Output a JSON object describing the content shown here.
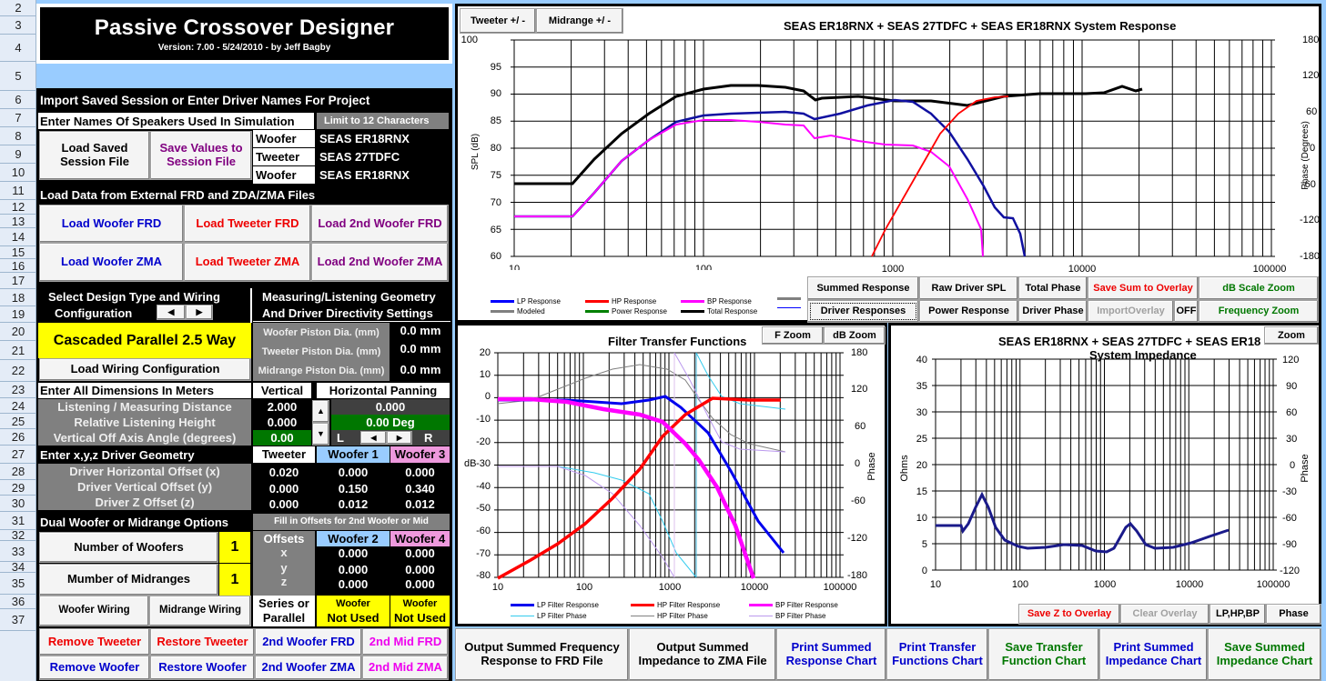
{
  "row_headers": [
    "2",
    "3",
    "4",
    "5",
    "6",
    "7",
    "8",
    "9",
    "10",
    "11",
    "12",
    "13",
    "14",
    "15",
    "16",
    "17",
    "18",
    "19",
    "20",
    "21",
    "22",
    "23",
    "24",
    "25",
    "26",
    "27",
    "28",
    "29",
    "30",
    "31",
    "32",
    "33",
    "34",
    "35",
    "36",
    "37"
  ],
  "header": {
    "title": "Passive Crossover Designer",
    "version": "Version: 7.00  -  5/24/2010 -  by Jeff Bagby"
  },
  "session": {
    "heading": "Import Saved Session or Enter Driver Names For Project",
    "names_label": "Enter Names Of Speakers Used In Simulation",
    "limit_note": "Limit to 12 Characters",
    "load_button": "Load Saved Session File",
    "save_button": "Save Values to Session File",
    "drivers": [
      {
        "role": "Woofer",
        "name": "SEAS ER18RNX"
      },
      {
        "role": "Tweeter",
        "name": "SEAS 27TDFC"
      },
      {
        "role": "Woofer",
        "name": "SEAS ER18RNX"
      }
    ]
  },
  "load_files": {
    "heading": "Load Data from External FRD and ZDA/ZMA Files",
    "buttons": [
      "Load Woofer FRD",
      "Load Tweeter FRD",
      "Load 2nd Woofer FRD",
      "Load Woofer ZMA",
      "Load Tweeter ZMA",
      "Load 2nd Woofer ZMA"
    ]
  },
  "design": {
    "heading_line1": "Select Design Type and Wiring",
    "heading_line2": "Configuration",
    "selected_type": "Cascaded Parallel 2.5 Way",
    "load_wiring": "Load Wiring Configuration",
    "prev_icon": "◀",
    "next_icon": "▶"
  },
  "geometry": {
    "heading_line1": "Measuring/Listening Geometry",
    "heading_line2": "And Driver Directivity Settings",
    "pistons": [
      {
        "label": "Woofer Piston Dia. (mm)",
        "value": "0.0 mm"
      },
      {
        "label": "Tweeter Piston Dia. (mm)",
        "value": "0.0 mm"
      },
      {
        "label": "Midrange Piston Dia. (mm)",
        "value": "0.0 mm"
      }
    ]
  },
  "dimensions": {
    "heading": "Enter All Dimensions In Meters",
    "vertical_label": "Vertical",
    "horizontal_label": "Horizontal Panning",
    "rows": [
      {
        "label": "Listening / Measuring  Distance",
        "value": "2.000"
      },
      {
        "label": "Relative Listening Height",
        "value": "0.000"
      },
      {
        "label": "Vertical Off Axis Angle (degrees)",
        "value": "0.00"
      }
    ],
    "horizontal_value": "0.000",
    "horizontal_deg": "0.00 Deg",
    "left_label": "L",
    "right_label": "R"
  },
  "driver_geometry": {
    "heading": "Enter x,y,z Driver Geometry",
    "columns": [
      "Tweeter",
      "Woofer 1",
      "Woofer 3"
    ],
    "rows": [
      {
        "label": "Driver Horizontal Offset (x)",
        "values": [
          "0.020",
          "0.000",
          "0.000"
        ]
      },
      {
        "label": "Driver Vertical Offset (y)",
        "values": [
          "0.000",
          "0.150",
          "0.340"
        ]
      },
      {
        "label": "Driver Z Offset (z)",
        "values": [
          "0.000",
          "0.012",
          "0.012"
        ]
      }
    ]
  },
  "dual": {
    "heading": "Dual Woofer or Midrange Options",
    "fill_note": "Fill in Offsets for 2nd Woofer or Mid",
    "num_woofers_label": "Number of Woofers",
    "num_woofers": "1",
    "num_mids_label": "Mumber of Midranges",
    "num_mids": "1",
    "offsets_label": "Offsets",
    "columns": [
      "Woofer 2",
      "Woofer 4"
    ],
    "rows": [
      {
        "axis": "x",
        "values": [
          "0.000",
          "0.000"
        ]
      },
      {
        "axis": "y",
        "values": [
          "0.000",
          "0.000"
        ]
      },
      {
        "axis": "z",
        "values": [
          "0.000",
          "0.000"
        ]
      }
    ],
    "woofer_wiring": "Woofer Wiring",
    "mid_wiring": "Midrange Wiring",
    "series_label_1": "Series or",
    "series_label_2": "Parallel",
    "status": [
      {
        "l1": "Woofer",
        "l2": "Not Used"
      },
      {
        "l1": "Woofer",
        "l2": "Not Used"
      }
    ]
  },
  "bottom_buttons": {
    "remove_tweeter": "Remove Tweeter",
    "restore_tweeter": "Restore Tweeter",
    "woofer2_frd": "2nd Woofer FRD",
    "mid2_frd": "2nd Mid FRD",
    "remove_woofer": "Remove Woofer",
    "restore_woofer": "Restore Woofer",
    "woofer2_zma": "2nd Woofer ZMA",
    "mid2_zma": "2nd Mid ZMA"
  },
  "system_chart": {
    "tweeter_btn": "Tweeter +/ -",
    "mid_btn": "Midrange  +/ -",
    "title": "SEAS ER18RNX  + SEAS 27TDFC + SEAS ER18RNX   System Response",
    "ylabel": "SPL  (dB)",
    "y2label": "Phase (Degrees)",
    "legend": [
      {
        "label": "LP Response",
        "color": "#0000ff"
      },
      {
        "label": "HP Response",
        "color": "#ff0000"
      },
      {
        "label": "BP Response",
        "color": "#ff00ff"
      },
      {
        "label": "Modeled",
        "color": "#808080"
      },
      {
        "label": "Power Response",
        "color": "#008000"
      },
      {
        "label": "Total Response",
        "color": "#000000"
      }
    ],
    "buttons": {
      "summed": "Summed Response",
      "raw": "Raw Driver SPL",
      "total_phase": "Total Phase",
      "save_sum": "Save Sum to Overlay",
      "db_zoom": "dB Scale Zoom",
      "driver_resp": "Driver Responses",
      "power": "Power Response",
      "driver_phase": "Driver Phase",
      "import_overlay": "ImportOverlay",
      "off": "OFF",
      "freq_zoom": "Frequency Zoom"
    }
  },
  "filter_chart": {
    "title": "Filter Transfer Functions",
    "fzoom": "F Zoom",
    "dbzoom": "dB Zoom",
    "ylabel": "dB",
    "y2label": "Phase",
    "legend": [
      {
        "label": "LP Filter Response",
        "color": "#0000ff"
      },
      {
        "label": "HP Filter Response",
        "color": "#ff0000"
      },
      {
        "label": "BP Filter Response",
        "color": "#ff00ff"
      },
      {
        "label": "LP Filter Phase",
        "color": "#33ccee"
      },
      {
        "label": "HP Filter Phase",
        "color": "#808080"
      },
      {
        "label": "BP Filter Phase",
        "color": "#bb99ee"
      }
    ]
  },
  "impedance_chart": {
    "title_line1": "SEAS ER18RNX  + SEAS 27TDFC  + SEAS ER18",
    "title_line2": "System Impedance",
    "zoom": "Zoom",
    "ylabel": "Ohms",
    "y2label": "Phase",
    "save_z": "Save Z to Overlay",
    "clear": "Clear Overlay",
    "lphpbp": "LP,HP,BP",
    "phase": "Phase"
  },
  "output_buttons": [
    {
      "label": "Output Summed Frequency Response to FRD File",
      "color": "black"
    },
    {
      "label": "Output  Summed Impedance to ZMA File",
      "color": "black"
    },
    {
      "label": "Print Summed Response Chart",
      "color": "blue"
    },
    {
      "label": "Print Transfer Functions Chart",
      "color": "blue"
    },
    {
      "label": "Save Transfer Function Chart",
      "color": "green"
    },
    {
      "label": "Print Summed Impedance Chart",
      "color": "blue"
    },
    {
      "label": "Save Summed Impedance Chart",
      "color": "green"
    }
  ],
  "chart_data": [
    {
      "type": "line",
      "title": "SEAS ER18RNX  + SEAS 27TDFC + SEAS ER18RNX   System Response",
      "xlabel": "",
      "ylabel": "SPL  (dB)",
      "y2label": "Phase (Degrees)",
      "xscale": "log",
      "xlim": [
        10,
        100000
      ],
      "ylim": [
        60,
        100
      ],
      "y2lim": [
        -180,
        180
      ],
      "x_ticks": [
        "10",
        "100",
        "1000",
        "10000",
        "100000"
      ],
      "y_ticks": [
        60,
        65,
        70,
        75,
        80,
        85,
        90,
        95,
        100
      ],
      "y2_ticks": [
        -180,
        -120,
        -60,
        0,
        60,
        120,
        180
      ],
      "grid": true,
      "series": [
        {
          "name": "Total Response",
          "x": [
            10,
            20,
            30,
            50,
            80,
            130,
            200,
            300,
            350,
            500,
            800,
            1000,
            2000,
            3000,
            5000,
            8000,
            10000,
            15000,
            20000
          ],
          "values": [
            73.3,
            73.3,
            78,
            84,
            89,
            91.5,
            91,
            90.5,
            89,
            90,
            89.7,
            89.5,
            88.5,
            90,
            90.5,
            89.8,
            90,
            91.5,
            90.7
          ]
        },
        {
          "name": "LP Response",
          "x": [
            10,
            20,
            30,
            50,
            80,
            130,
            200,
            300,
            350,
            500,
            800,
            1000,
            1500,
            2000,
            3000,
            4000,
            5000
          ],
          "values": [
            67.3,
            67.3,
            72,
            78,
            83,
            85.8,
            86.2,
            86.5,
            85.5,
            86.5,
            88.5,
            89,
            88,
            84,
            76,
            68,
            60
          ]
        },
        {
          "name": "BP Response",
          "x": [
            10,
            20,
            30,
            50,
            80,
            130,
            200,
            300,
            350,
            500,
            700,
            1000,
            1500,
            2000,
            3000
          ],
          "values": [
            67.3,
            67.3,
            72,
            78,
            83,
            85.3,
            85,
            84.8,
            82.8,
            82.5,
            82,
            81,
            78,
            70,
            60
          ]
        },
        {
          "name": "HP Response",
          "x": [
            800,
            1000,
            1500,
            2000,
            2500,
            3000,
            4000,
            5000
          ],
          "values": [
            60,
            68,
            77,
            84,
            88,
            89.5,
            90,
            90.5
          ]
        }
      ]
    },
    {
      "type": "line",
      "title": "Filter Transfer Functions",
      "ylabel": "dB",
      "y2label": "Phase",
      "xscale": "log",
      "xlim": [
        10,
        100000
      ],
      "ylim": [
        -80,
        20
      ],
      "y2lim": [
        -180,
        180
      ],
      "x_ticks": [
        "10",
        "100",
        "1000",
        "10000",
        "100000"
      ],
      "y_ticks": [
        -80,
        -70,
        -60,
        -50,
        -40,
        -30,
        -20,
        -10,
        0,
        10,
        20
      ],
      "y2_ticks": [
        -180,
        -120,
        -60,
        0,
        60,
        120,
        180
      ],
      "series": [
        {
          "name": "LP Filter Response",
          "x": [
            10,
            100,
            300,
            700,
            1000,
            2000,
            4000,
            10000,
            20000
          ],
          "values": [
            -1,
            -1,
            -1.5,
            1.5,
            0,
            -12,
            -35,
            -58,
            -70
          ]
        },
        {
          "name": "HP Filter Response",
          "x": [
            10,
            30,
            100,
            300,
            700,
            1000,
            2000,
            4000,
            10000,
            20000
          ],
          "values": [
            -80,
            -70,
            -55,
            -38,
            -20,
            -14,
            -6,
            0,
            -0.5,
            -0.5
          ]
        },
        {
          "name": "BP Filter Response",
          "x": [
            10,
            100,
            300,
            700,
            1000,
            2000,
            4000,
            8000,
            14000
          ],
          "values": [
            -1,
            -1,
            -4,
            -6,
            -12,
            -20,
            -40,
            -65,
            -80
          ]
        }
      ]
    },
    {
      "type": "line",
      "title": "SEAS ER18RNX  + SEAS 27TDFC  + SEAS ER18 System Impedance",
      "ylabel": "Ohms",
      "y2label": "Phase",
      "xscale": "log",
      "xlim": [
        10,
        100000
      ],
      "ylim": [
        0,
        40
      ],
      "y2lim": [
        -120,
        120
      ],
      "x_ticks": [
        "10",
        "100",
        "1000",
        "10000",
        "100000"
      ],
      "y_ticks": [
        0,
        5,
        10,
        15,
        20,
        25,
        30,
        35,
        40
      ],
      "y2_ticks": [
        -120,
        -90,
        -60,
        -30,
        0,
        30,
        60,
        90,
        120
      ],
      "series": [
        {
          "name": "Impedance",
          "x": [
            10,
            20,
            22,
            30,
            38,
            50,
            70,
            100,
            150,
            200,
            400,
            600,
            900,
            1200,
            1800,
            2200,
            3000,
            4000,
            6000,
            10000,
            15000,
            20000
          ],
          "values": [
            8.5,
            8.5,
            7.6,
            11,
            15.8,
            11,
            7,
            5.2,
            4.7,
            4.8,
            5.4,
            4.8,
            3.8,
            5,
            8.8,
            7,
            4.7,
            4.6,
            5.2,
            6.2,
            7.2,
            8
          ]
        }
      ]
    }
  ]
}
